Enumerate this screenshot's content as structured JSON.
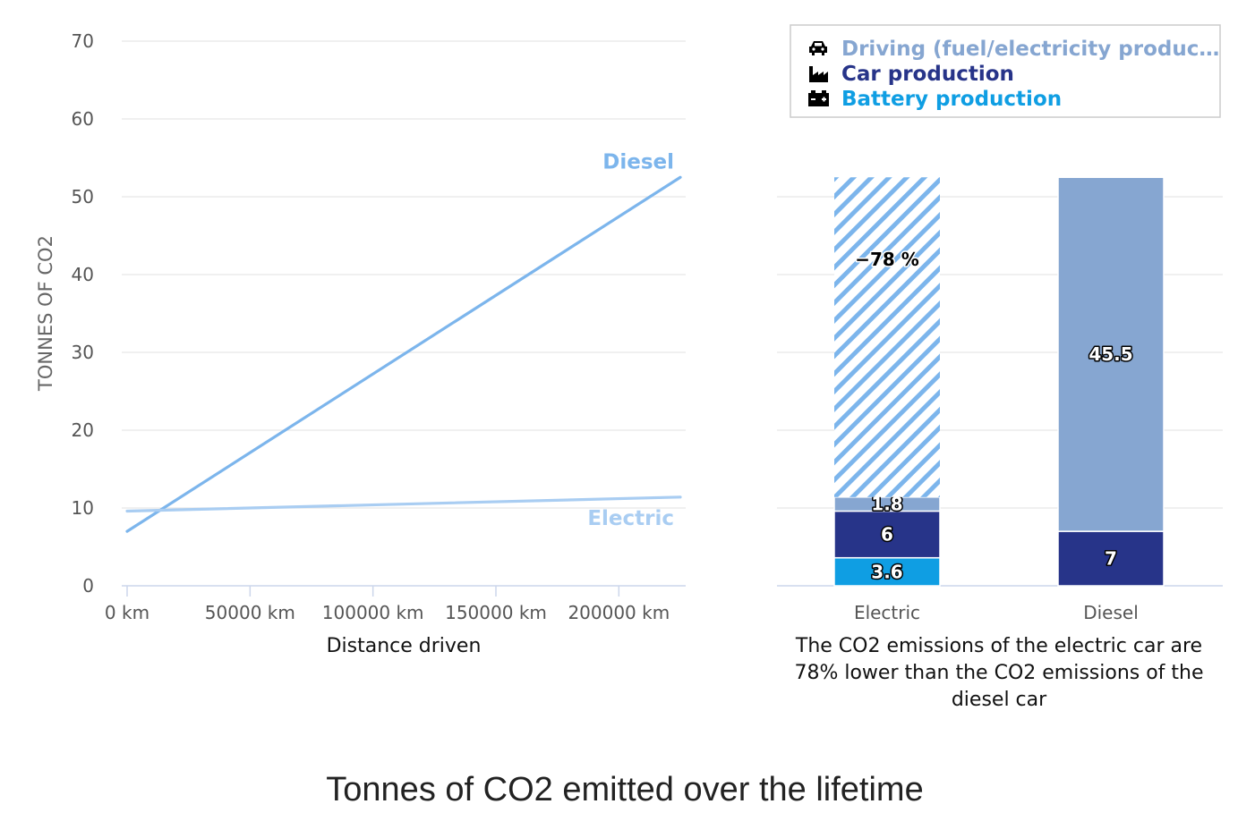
{
  "title": "Tonnes of CO2 emitted over the lifetime",
  "chart_data": [
    {
      "type": "line",
      "xlabel": "Distance driven",
      "ylabel": "TONNES OF CO2",
      "xlim": [
        0,
        225000
      ],
      "ylim": [
        0,
        70
      ],
      "x_ticks": [
        "0 km",
        "50000 km",
        "100000 km",
        "150000 km",
        "200000 km"
      ],
      "x_tick_values": [
        0,
        50000,
        100000,
        150000,
        200000
      ],
      "y_ticks": [
        0,
        10,
        20,
        30,
        40,
        50,
        60,
        70
      ],
      "grid": true,
      "series": [
        {
          "name": "Diesel",
          "color": "#7cb5ec",
          "x": [
            0,
            225000
          ],
          "y": [
            7,
            52.5
          ]
        },
        {
          "name": "Electric",
          "color": "#a9cdf2",
          "x": [
            0,
            225000
          ],
          "y": [
            9.6,
            11.4
          ]
        }
      ]
    },
    {
      "type": "bar",
      "stacked": true,
      "categories": [
        "Electric",
        "Diesel"
      ],
      "ylim": [
        0,
        70
      ],
      "grid": true,
      "legend_position": "top-right",
      "series": [
        {
          "name": "Driving (fuel/electricity produc…",
          "color": "#86a6d1",
          "values": [
            1.8,
            45.5
          ],
          "icon": "car-icon"
        },
        {
          "name": "Car production",
          "color": "#273489",
          "values": [
            6,
            7
          ],
          "icon": "factory-icon"
        },
        {
          "name": "Battery production",
          "color": "#0f9ee3",
          "values": [
            3.6,
            0
          ],
          "icon": "battery-icon"
        }
      ],
      "savings": {
        "label": "−78 %",
        "category": "Electric",
        "top": 52.5
      },
      "caption": [
        "The CO2 emissions of the electric car are",
        "78% lower than the CO2 emissions of the",
        "diesel car"
      ]
    }
  ]
}
